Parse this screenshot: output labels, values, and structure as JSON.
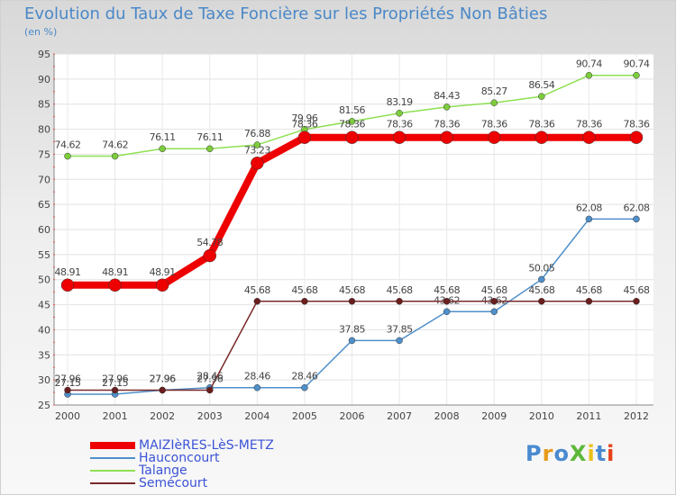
{
  "chart_data": {
    "type": "line",
    "title": "Evolution du Taux de Taxe Foncière sur les Propriétés Non Bâties",
    "unit_label": "(en %)",
    "xlabel": "",
    "ylabel": "",
    "ylim": [
      25,
      95
    ],
    "yticks": [
      25,
      30,
      35,
      40,
      45,
      50,
      55,
      60,
      65,
      70,
      75,
      80,
      85,
      90,
      95
    ],
    "categories": [
      "2000",
      "2001",
      "2002",
      "2003",
      "2004",
      "2005",
      "2006",
      "2007",
      "2008",
      "2009",
      "2010",
      "2011",
      "2012"
    ],
    "grid": true,
    "series": [
      {
        "name": "Hauconcourt",
        "color": "#4f8fca",
        "marker_color": "#4f8fca",
        "values": [
          27.15,
          27.15,
          27.96,
          28.46,
          28.46,
          28.46,
          37.85,
          37.85,
          43.62,
          43.62,
          50.05,
          62.08,
          62.08
        ],
        "labels": [
          "27.15",
          "27.15",
          "27.96",
          "28.46",
          "28.46",
          "28.46",
          "37.85",
          "37.85",
          "43.62",
          "43.62",
          "50.05",
          "62.08",
          "62.08"
        ]
      },
      {
        "name": "Talange",
        "color": "#8ee052",
        "marker_color": "#7ccc3c",
        "values": [
          74.62,
          74.62,
          76.11,
          76.11,
          76.88,
          79.96,
          81.56,
          83.19,
          84.43,
          85.27,
          86.54,
          90.74,
          90.74
        ],
        "labels": [
          "74.62",
          "74.62",
          "76.11",
          "76.11",
          "76.88",
          "79.96",
          "81.56",
          "83.19",
          "84.43",
          "85.27",
          "86.54",
          "90.74",
          "90.74"
        ]
      },
      {
        "name": "Semécourt",
        "color": "#7a2a2a",
        "marker_color": "#6b1e1e",
        "values": [
          27.96,
          27.96,
          27.96,
          27.96,
          45.68,
          45.68,
          45.68,
          45.68,
          45.68,
          45.68,
          45.68,
          45.68,
          45.68
        ],
        "labels": [
          "27.96",
          "27.96",
          "27.96",
          "27.96",
          "45.68",
          "45.68",
          "45.68",
          "45.68",
          "45.68",
          "45.68",
          "45.68",
          "45.68",
          "45.68"
        ]
      },
      {
        "name": "MAIZIèRES-LèS-METZ",
        "color": "#ee0000",
        "marker_color": "#ee0000",
        "values": [
          48.91,
          48.91,
          48.91,
          54.78,
          73.23,
          78.36,
          78.36,
          78.36,
          78.36,
          78.36,
          78.36,
          78.36,
          78.36
        ],
        "labels": [
          "48.91",
          "48.91",
          "48.91",
          "54.78",
          "73.23",
          "78.36",
          "78.36",
          "78.36",
          "78.36",
          "78.36",
          "78.36",
          "78.36",
          "78.36"
        ]
      }
    ],
    "legend": [
      {
        "name": "MAIZIèRES-LèS-METZ",
        "color": "#ee0000"
      },
      {
        "name": "Hauconcourt",
        "color": "#4f8fca"
      },
      {
        "name": "Talange",
        "color": "#8ee052"
      },
      {
        "name": "Semécourt",
        "color": "#7a2a2a"
      }
    ],
    "legend_position": "bottom-left"
  },
  "logo": {
    "text": "ProXiti",
    "colors": [
      "#4a8ad0",
      "#e89a1a",
      "#4a8ad0",
      "#5db83a",
      "#e8c21a",
      "#4a8ad0",
      "#e8401a"
    ]
  }
}
